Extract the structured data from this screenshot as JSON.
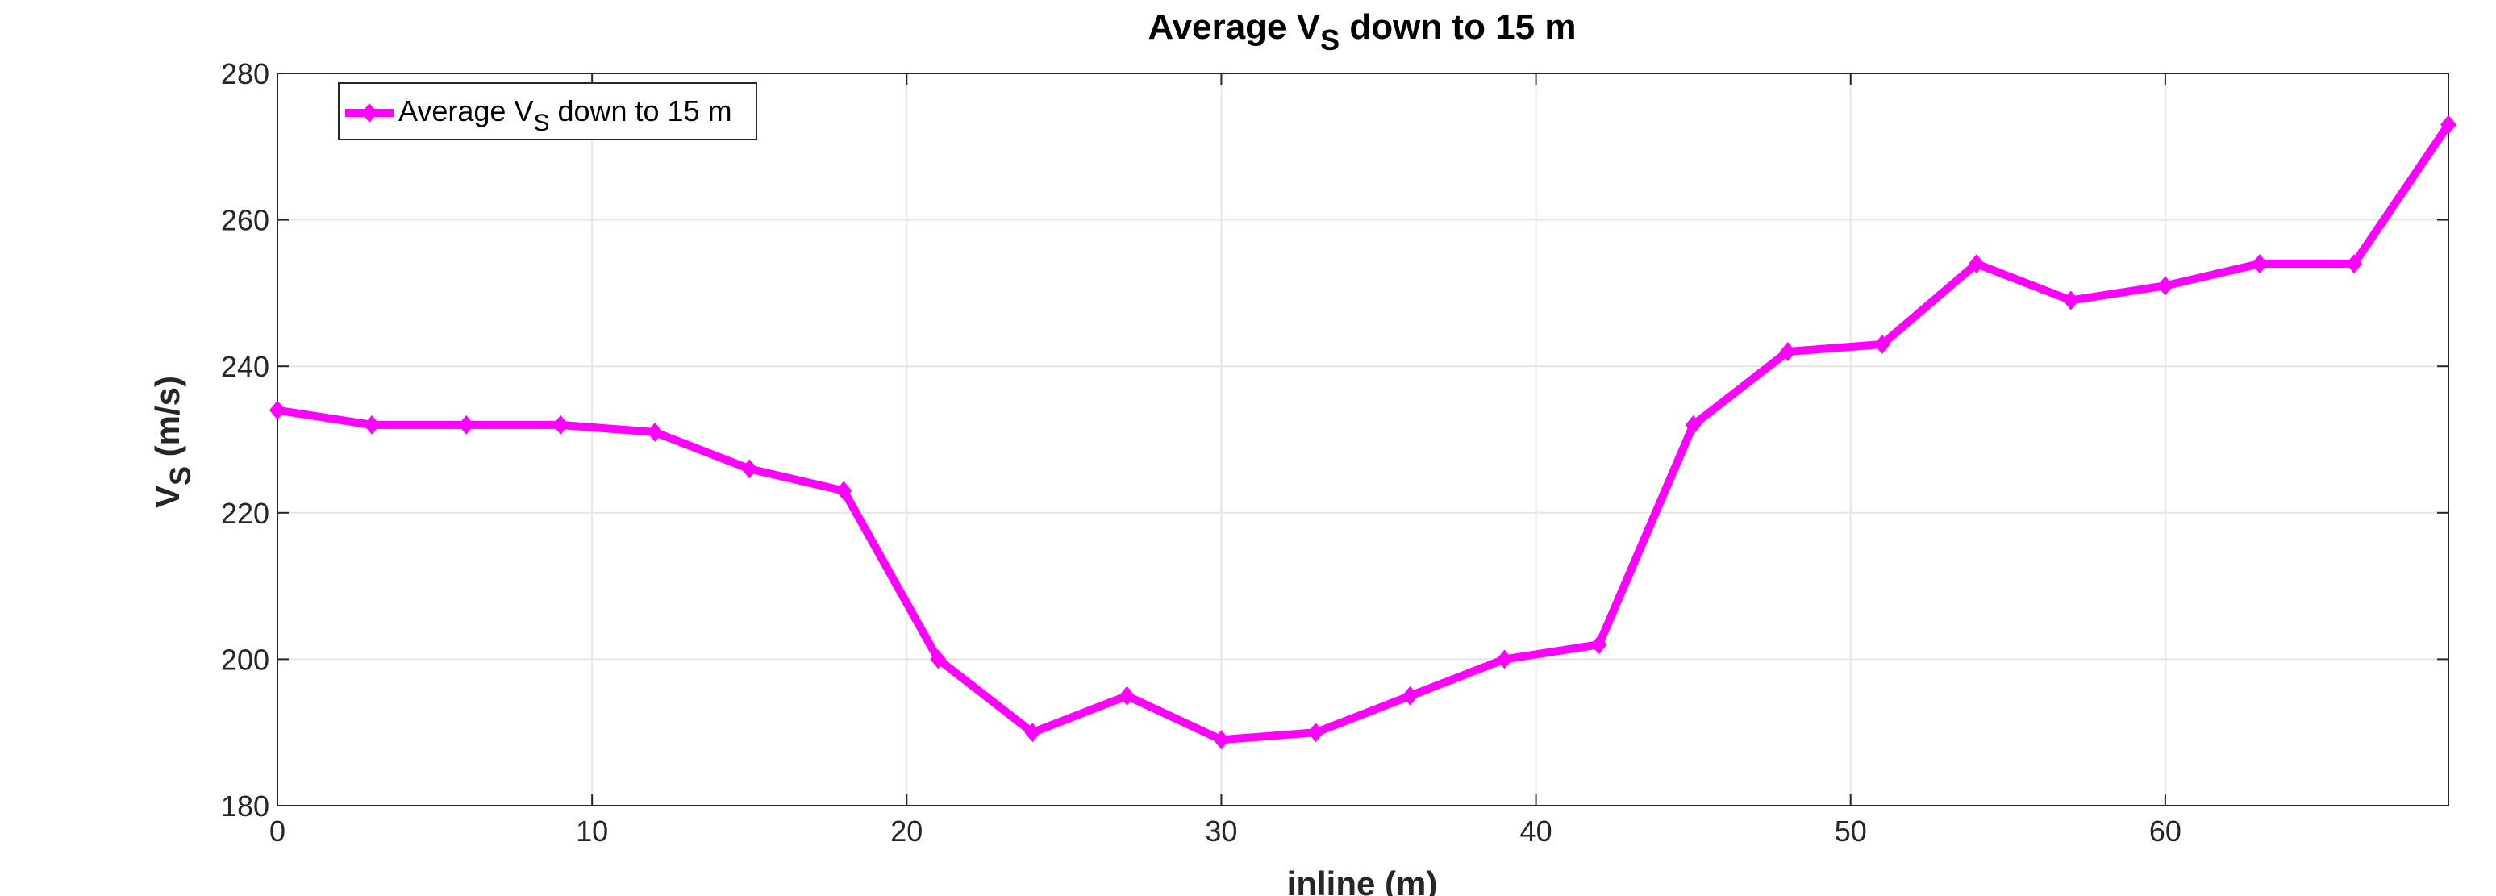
{
  "chart_data": {
    "type": "line",
    "title": {
      "main": "Average V",
      "sub": "S",
      "rest": " down to 15 m"
    },
    "xlabel": "inline (m)",
    "ylabel": {
      "main": "V",
      "sub": "S",
      "rest": " (m/s)"
    },
    "xlim": [
      0,
      69
    ],
    "ylim": [
      180,
      280
    ],
    "xticks": [
      0,
      10,
      20,
      30,
      40,
      50,
      60
    ],
    "yticks": [
      180,
      200,
      220,
      240,
      260,
      280
    ],
    "grid": true,
    "legend": {
      "position": "top-left",
      "entries": [
        {
          "main": "Average V",
          "sub": "S",
          "rest": " down to 15 m"
        }
      ]
    },
    "series": [
      {
        "name": "Average VS down to 15 m",
        "color": "#ff00ff",
        "marker": "diamond",
        "x": [
          0,
          3,
          6,
          9,
          12,
          15,
          18,
          21,
          24,
          27,
          30,
          33,
          36,
          39,
          42,
          45,
          48,
          51,
          54,
          57,
          60,
          63,
          66,
          69
        ],
        "y": [
          234,
          232,
          232,
          232,
          231,
          226,
          223,
          200,
          190,
          195,
          189,
          190,
          195,
          200,
          202,
          232,
          242,
          243,
          254,
          249,
          251,
          254,
          254,
          273
        ]
      }
    ]
  }
}
